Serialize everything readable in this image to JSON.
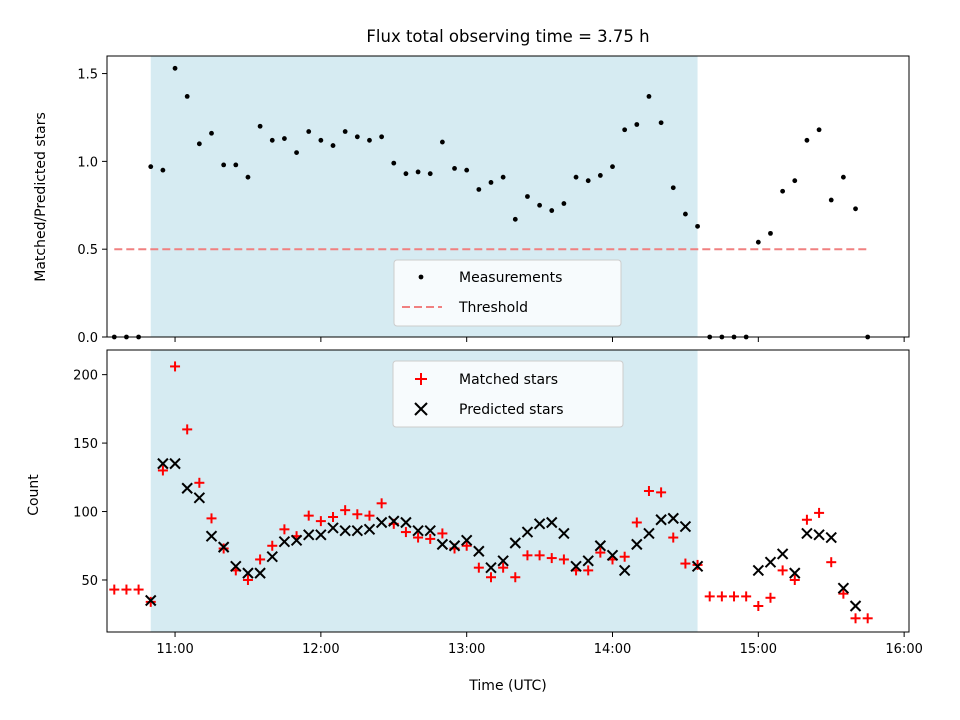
{
  "chart_data": [
    {
      "type": "scatter",
      "title": "Flux total observing time = 3.75 h",
      "xlabel": "",
      "ylabel": "Matched/Predicted stars",
      "ylim": [
        0,
        1.6
      ],
      "xlim": [
        "10:32",
        "16:02"
      ],
      "yticks": [
        "0.0",
        "0.5",
        "1.0",
        "1.5"
      ],
      "shaded_interval": [
        "10:50",
        "14:35"
      ],
      "shaded_color": "#add8e6",
      "legend_position": "lower-center",
      "legend": [
        "Measurements",
        "Threshold"
      ],
      "threshold": {
        "y": 0.5,
        "x_start": "10:35",
        "x_end": "15:45",
        "color": "#f08080"
      },
      "series": [
        {
          "name": "Measurements",
          "color": "#000000",
          "x": [
            "10:35",
            "10:40",
            "10:45",
            "10:50",
            "10:55",
            "11:00",
            "11:05",
            "11:10",
            "11:15",
            "11:20",
            "11:25",
            "11:30",
            "11:35",
            "11:40",
            "11:45",
            "11:50",
            "11:55",
            "12:00",
            "12:05",
            "12:10",
            "12:15",
            "12:20",
            "12:25",
            "12:30",
            "12:35",
            "12:40",
            "12:45",
            "12:50",
            "12:55",
            "13:00",
            "13:05",
            "13:10",
            "13:15",
            "13:20",
            "13:25",
            "13:30",
            "13:35",
            "13:40",
            "13:45",
            "13:50",
            "13:55",
            "14:00",
            "14:05",
            "14:10",
            "14:15",
            "14:20",
            "14:25",
            "14:30",
            "14:35",
            "14:40",
            "14:45",
            "14:50",
            "14:55",
            "15:00",
            "15:05",
            "15:10",
            "15:15",
            "15:20",
            "15:25",
            "15:30",
            "15:35",
            "15:40",
            "15:45"
          ],
          "y": [
            0,
            0,
            0,
            0.97,
            0.95,
            1.53,
            1.37,
            1.1,
            1.16,
            0.98,
            0.98,
            0.91,
            1.2,
            1.12,
            1.13,
            1.05,
            1.17,
            1.12,
            1.09,
            1.17,
            1.14,
            1.12,
            1.14,
            0.99,
            0.93,
            0.94,
            0.93,
            1.11,
            0.96,
            0.95,
            0.84,
            0.88,
            0.91,
            0.67,
            0.8,
            0.75,
            0.72,
            0.76,
            0.91,
            0.89,
            0.92,
            0.97,
            1.18,
            1.21,
            1.37,
            1.22,
            0.85,
            0.7,
            0.63,
            0,
            0,
            0,
            0,
            0.54,
            0.59,
            0.83,
            0.89,
            1.12,
            1.18,
            0.78,
            0.91,
            0.73,
            0
          ]
        }
      ]
    },
    {
      "type": "scatter",
      "title": "",
      "xlabel": "Time (UTC)",
      "ylabel": "Count",
      "ylim": [
        12,
        218
      ],
      "xlim": [
        "10:32",
        "16:02"
      ],
      "xticks": [
        "11:00",
        "12:00",
        "13:00",
        "14:00",
        "15:00",
        "16:00"
      ],
      "yticks": [
        "50",
        "100",
        "150",
        "200"
      ],
      "shaded_interval": [
        "10:50",
        "14:35"
      ],
      "legend_position": "top-center",
      "legend": [
        "Matched stars",
        "Predicted stars"
      ],
      "x": [
        "10:35",
        "10:40",
        "10:45",
        "10:50",
        "10:55",
        "11:00",
        "11:05",
        "11:10",
        "11:15",
        "11:20",
        "11:25",
        "11:30",
        "11:35",
        "11:40",
        "11:45",
        "11:50",
        "11:55",
        "12:00",
        "12:05",
        "12:10",
        "12:15",
        "12:20",
        "12:25",
        "12:30",
        "12:35",
        "12:40",
        "12:45",
        "12:50",
        "12:55",
        "13:00",
        "13:05",
        "13:10",
        "13:15",
        "13:20",
        "13:25",
        "13:30",
        "13:35",
        "13:40",
        "13:45",
        "13:50",
        "13:55",
        "14:00",
        "14:05",
        "14:10",
        "14:15",
        "14:20",
        "14:25",
        "14:30",
        "14:35",
        "14:40",
        "14:45",
        "14:50",
        "14:55",
        "15:00",
        "15:05",
        "15:10",
        "15:15",
        "15:20",
        "15:25",
        "15:30",
        "15:35",
        "15:40",
        "15:45"
      ],
      "series": [
        {
          "name": "Matched stars",
          "color": "#ff0000",
          "marker": "plus",
          "values": [
            43,
            43,
            43,
            34,
            130,
            206,
            160,
            121,
            95,
            73,
            57,
            50,
            65,
            75,
            87,
            82,
            97,
            93,
            96,
            101,
            98,
            97,
            106,
            91,
            85,
            81,
            80,
            84,
            73,
            75,
            59,
            52,
            59,
            52,
            68,
            68,
            66,
            65,
            57,
            57,
            70,
            65,
            67,
            92,
            115,
            114,
            81,
            62,
            61,
            38,
            38,
            38,
            38,
            31,
            37,
            57,
            50,
            94,
            99,
            63,
            40,
            22,
            22
          ]
        },
        {
          "name": "Predicted stars",
          "color": "#000000",
          "marker": "x",
          "values": [
            null,
            null,
            null,
            35,
            135,
            135,
            117,
            110,
            82,
            74,
            60,
            55,
            55,
            67,
            78,
            79,
            83,
            83,
            88,
            86,
            86,
            87,
            92,
            93,
            92,
            86,
            86,
            76,
            75,
            79,
            71,
            59,
            64,
            77,
            85,
            91,
            92,
            84,
            60,
            64,
            75,
            68,
            57,
            76,
            84,
            94,
            95,
            89,
            60,
            null,
            null,
            null,
            null,
            57,
            63,
            69,
            55,
            84,
            83,
            81,
            44,
            31,
            null
          ]
        }
      ]
    }
  ]
}
